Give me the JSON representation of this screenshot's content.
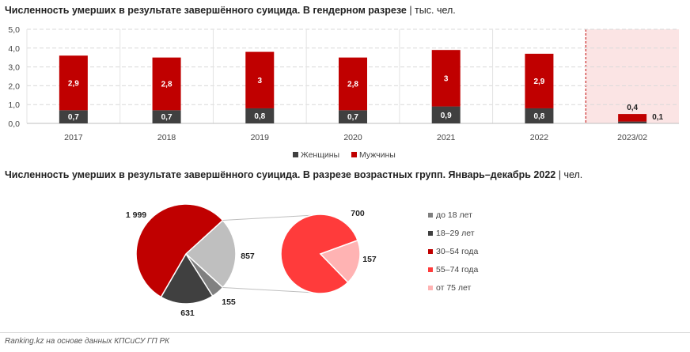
{
  "charts": {
    "top": {
      "title_bold": "Численность умерших в результате завершённого суицида. В гендерном разрезе",
      "title_sep": " | ",
      "title_unit": "тыс. чел."
    },
    "bottom": {
      "title_bold": "Численность умерших в результате завершённого суицида. В разрезе возрастных групп. Январь–декабрь 2022",
      "title_sep": " | ",
      "title_unit": "чел."
    }
  },
  "source": "Ranking.kz на основе данных КПСиСУ ГП РК",
  "chart_data": [
    {
      "type": "bar",
      "stacked": true,
      "categories": [
        "2017",
        "2018",
        "2019",
        "2020",
        "2021",
        "2022",
        "2023/02"
      ],
      "series": [
        {
          "name": "Женщины",
          "values": [
            0.7,
            0.7,
            0.8,
            0.7,
            0.9,
            0.8,
            0.1
          ],
          "labels": [
            "0,7",
            "0,7",
            "0,8",
            "0,7",
            "0,9",
            "0,8",
            "0,1"
          ],
          "color": "#404040"
        },
        {
          "name": "Мужчины",
          "values": [
            2.9,
            2.8,
            3.0,
            2.8,
            3.0,
            2.9,
            0.4
          ],
          "labels": [
            "2,9",
            "2,8",
            "3",
            "2,8",
            "3",
            "2,9",
            "0,4"
          ],
          "color": "#c00000"
        }
      ],
      "ylim": [
        0,
        5
      ],
      "yticks": [
        "0,0",
        "1,0",
        "2,0",
        "3,0",
        "4,0",
        "5,0"
      ],
      "highlight_category": "2023/02",
      "highlight_color": "#fbe4e4",
      "grid": true,
      "legend": "bottom"
    },
    {
      "type": "pie",
      "main": {
        "slices": [
          {
            "name": "30–54 года",
            "value": 1999,
            "label": "1 999",
            "color": "#c00000"
          },
          {
            "name": "55–74 года + от 75 лет",
            "value": 857,
            "label": "857",
            "color": "#bfbfbf"
          },
          {
            "name": "до 18 лет",
            "value": 155,
            "label": "155",
            "color": "#808080"
          },
          {
            "name": "18–29 лет",
            "value": 631,
            "label": "631",
            "color": "#404040"
          }
        ]
      },
      "secondary": {
        "slices": [
          {
            "name": "55–74 года",
            "value": 700,
            "label": "700",
            "color": "#ff3b3b"
          },
          {
            "name": "от 75 лет",
            "value": 157,
            "label": "157",
            "color": "#ffb3b3"
          }
        ]
      },
      "legend": [
        {
          "name": "до 18 лет",
          "color": "#808080"
        },
        {
          "name": "18–29 лет",
          "color": "#404040"
        },
        {
          "name": "30–54 года",
          "color": "#c00000"
        },
        {
          "name": "55–74 года",
          "color": "#ff3b3b"
        },
        {
          "name": "от 75 лет",
          "color": "#ffb3b3"
        }
      ]
    }
  ]
}
